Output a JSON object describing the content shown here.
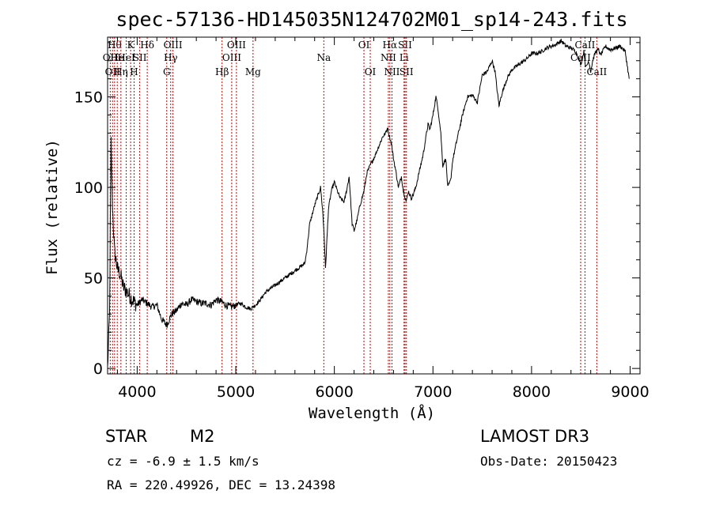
{
  "chart_data": {
    "type": "line",
    "title": "spec-57136-HD145035N124702M01_sp14-243.fits",
    "xlabel": "Wavelength (Å)",
    "ylabel": "Flux (relative)",
    "xlim": [
      3700,
      9100
    ],
    "ylim": [
      -3,
      183
    ],
    "xticks": [
      4000,
      5000,
      6000,
      7000,
      8000,
      9000
    ],
    "yticks": [
      0,
      50,
      100,
      150
    ],
    "grid": false,
    "series": [
      {
        "color": "#000000",
        "x": [
          3700,
          3720,
          3735,
          3750,
          3770,
          3800,
          3830,
          3860,
          3900,
          3950,
          4000,
          4050,
          4100,
          4150,
          4200,
          4250,
          4300,
          4350,
          4400,
          4450,
          4500,
          4550,
          4600,
          4650,
          4700,
          4750,
          4800,
          4850,
          4900,
          4950,
          5000,
          5050,
          5100,
          5150,
          5200,
          5250,
          5300,
          5350,
          5400,
          5450,
          5500,
          5550,
          5600,
          5650,
          5700,
          5720,
          5750,
          5800,
          5830,
          5860,
          5880,
          5895,
          5910,
          5940,
          5970,
          6000,
          6030,
          6060,
          6100,
          6130,
          6150,
          6180,
          6200,
          6230,
          6260,
          6300,
          6330,
          6370,
          6400,
          6430,
          6460,
          6490,
          6520,
          6540,
          6560,
          6580,
          6600,
          6620,
          6650,
          6680,
          6700,
          6730,
          6750,
          6780,
          6800,
          6830,
          6850,
          6900,
          6950,
          6970,
          7000,
          7030,
          7050,
          7080,
          7100,
          7130,
          7150,
          7180,
          7200,
          7250,
          7300,
          7350,
          7400,
          7450,
          7500,
          7550,
          7600,
          7630,
          7650,
          7670,
          7700,
          7750,
          7800,
          7850,
          7900,
          7950,
          8000,
          8050,
          8100,
          8150,
          8200,
          8250,
          8300,
          8350,
          8400,
          8450,
          8500,
          8530,
          8550,
          8580,
          8600,
          8620,
          8650,
          8680,
          8700,
          8750,
          8800,
          8850,
          8900,
          8950,
          8990
        ],
        "y": [
          0,
          30,
          125,
          90,
          65,
          55,
          52,
          45,
          42,
          38,
          35,
          38,
          36,
          34,
          35,
          27,
          24,
          30,
          32,
          36,
          35,
          38,
          37,
          36,
          36,
          35,
          38,
          37,
          35,
          34,
          35,
          36,
          34,
          33,
          35,
          38,
          42,
          44,
          46,
          48,
          50,
          52,
          54,
          56,
          58,
          65,
          80,
          90,
          95,
          100,
          88,
          75,
          55,
          88,
          98,
          103,
          98,
          94,
          92,
          100,
          106,
          80,
          76,
          82,
          90,
          98,
          108,
          113,
          116,
          120,
          124,
          128,
          130,
          133,
          128,
          124,
          116,
          110,
          100,
          106,
          98,
          92,
          98,
          94,
          96,
          101,
          106,
          118,
          135,
          132,
          140,
          150,
          144,
          130,
          112,
          116,
          100,
          104,
          115,
          128,
          140,
          150,
          151,
          147,
          162,
          164,
          170,
          164,
          154,
          145,
          152,
          160,
          165,
          167,
          169,
          171,
          174,
          174,
          175,
          177,
          178,
          179,
          181,
          178,
          177,
          175,
          168,
          175,
          166,
          170,
          164,
          170,
          175,
          176,
          173,
          178,
          176,
          177,
          178,
          175,
          160
        ]
      }
    ],
    "lines": [
      {
        "x": 3727,
        "labels": [
          "OII"
        ],
        "row": 2
      },
      {
        "x": 3750,
        "labels": [
          "OII"
        ],
        "row": 3
      },
      {
        "x": 3771,
        "labels": [
          "Hθ"
        ],
        "row": 1
      },
      {
        "x": 3798,
        "labels": [
          "He"
        ],
        "row": 2
      },
      {
        "x": 3835,
        "labels": [
          "Hη"
        ],
        "row": 3
      },
      {
        "x": 3889,
        "labels": [
          "HeI"
        ],
        "row": 2
      },
      {
        "x": 3934,
        "labels": [
          "K"
        ],
        "row": 1
      },
      {
        "x": 3969,
        "labels": [
          "H"
        ],
        "row": 3
      },
      {
        "x": 4026,
        "labels": [
          "SII"
        ],
        "row": 2
      },
      {
        "x": 4102,
        "labels": [
          "Hδ"
        ],
        "row": 1
      },
      {
        "x": 4300,
        "labels": [
          "G"
        ],
        "row": 3
      },
      {
        "x": 4340,
        "labels": [
          "Hγ"
        ],
        "row": 2
      },
      {
        "x": 4363,
        "labels": [
          "OIII"
        ],
        "row": 1
      },
      {
        "x": 4861,
        "labels": [
          "Hβ"
        ],
        "row": 3
      },
      {
        "x": 4959,
        "labels": [
          "OIII"
        ],
        "row": 2
      },
      {
        "x": 5007,
        "labels": [
          "OIII"
        ],
        "row": 1
      },
      {
        "x": 5175,
        "labels": [
          "Mg"
        ],
        "row": 3
      },
      {
        "x": 5893,
        "labels": [
          "Na"
        ],
        "row": 2
      },
      {
        "x": 6300,
        "labels": [
          "OI"
        ],
        "row": 1
      },
      {
        "x": 6364,
        "labels": [
          "OI"
        ],
        "row": 3
      },
      {
        "x": 6548,
        "labels": [
          "NII"
        ],
        "row": 2
      },
      {
        "x": 6563,
        "labels": [
          "Hα"
        ],
        "row": 1
      },
      {
        "x": 6584,
        "labels": [
          "NII"
        ],
        "row": 3
      },
      {
        "x": 6707,
        "labels": [
          "Li"
        ],
        "row": 2
      },
      {
        "x": 6717,
        "labels": [
          "SII"
        ],
        "row": 1
      },
      {
        "x": 6731,
        "labels": [
          "SII"
        ],
        "row": 3
      },
      {
        "x": 8498,
        "labels": [
          "CaII"
        ],
        "row": 2
      },
      {
        "x": 8542,
        "labels": [
          "CaII"
        ],
        "row": 1
      },
      {
        "x": 8662,
        "labels": [
          "CaII"
        ],
        "row": 3
      }
    ]
  },
  "footer": {
    "class_label": "STAR",
    "subclass": "M2",
    "survey": "LAMOST DR3",
    "cz": "cz = -6.9 ± 1.5 km/s",
    "obs_date": "Obs-Date: 20150423",
    "radec": "RA = 220.49926, DEC =  13.24398"
  }
}
